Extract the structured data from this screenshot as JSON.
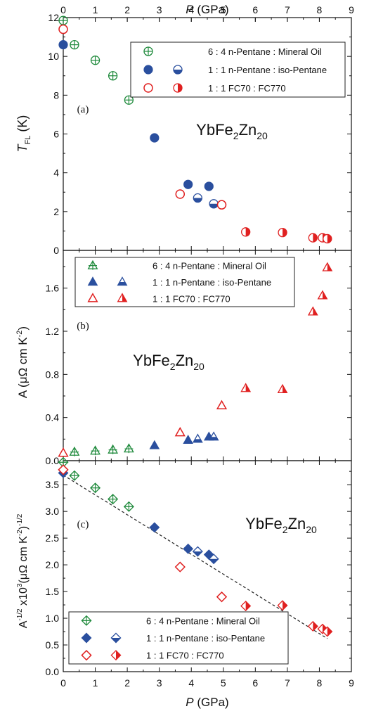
{
  "figure": {
    "top_axis_label": "P (GPa)",
    "bottom_axis_label": "P (GPa)",
    "x_ticks": [
      "0",
      "1",
      "2",
      "3",
      "4",
      "5",
      "6",
      "7",
      "8",
      "9"
    ]
  },
  "chart_data": [
    {
      "type": "scatter",
      "panel_label": "(a)",
      "annotation": "YbFe2Zn20",
      "ylabel": "T_FL (K)",
      "xlabel": "P (GPa)",
      "xlim": [
        0,
        9
      ],
      "ylim": [
        0,
        12
      ],
      "y_ticks": [
        "0",
        "2",
        "4",
        "6",
        "8",
        "10",
        "12"
      ],
      "legend_position": "top-right",
      "legend": [
        {
          "label": "6 : 4 n-Pentane : Mineral Oil",
          "markers": [
            "crossed-circle-green"
          ]
        },
        {
          "label": "1 : 1 n-Pentane : iso-Pentane",
          "markers": [
            "filled-circle-blue",
            "half-circle-blue"
          ]
        },
        {
          "label": "1 : 1 FC70 : FC770",
          "markers": [
            "open-circle-red",
            "half-circle-red"
          ]
        }
      ],
      "series": [
        {
          "name": "6 : 4 n-Pentane : Mineral Oil",
          "marker": "crossed-circle",
          "color": "#1f8a3c",
          "x": [
            0,
            0.35,
            1.0,
            1.55,
            2.05
          ],
          "y": [
            11.85,
            10.6,
            9.8,
            9.0,
            7.75
          ]
        },
        {
          "name": "1 : 1 n-Pentane : iso-Pentane",
          "marker": "filled-circle",
          "color": "#2a4f9e",
          "x": [
            0,
            2.85,
            3.9,
            4.55
          ],
          "y": [
            10.6,
            5.8,
            3.4,
            3.3
          ]
        },
        {
          "name": "1 : 1 n-Pentane : iso-Pentane",
          "marker": "half-circle",
          "color": "#2a4f9e",
          "x": [
            4.2,
            4.7
          ],
          "y": [
            2.7,
            2.4
          ]
        },
        {
          "name": "1 : 1 FC70 : FC770",
          "marker": "open-circle",
          "color": "#e02020",
          "x": [
            0,
            3.65,
            4.95
          ],
          "y": [
            11.4,
            2.9,
            2.35
          ]
        },
        {
          "name": "1 : 1 FC70 : FC770",
          "marker": "half-circle",
          "color": "#e02020",
          "x": [
            5.7,
            6.85,
            7.8,
            8.1,
            8.25
          ],
          "y": [
            0.95,
            0.92,
            0.65,
            0.65,
            0.6
          ]
        }
      ]
    },
    {
      "type": "scatter",
      "panel_label": "(b)",
      "annotation": "YbFe2Zn20",
      "ylabel": "A (μΩ cm K^-2)",
      "xlabel": "P (GPa)",
      "xlim": [
        0,
        9
      ],
      "ylim": [
        0,
        1.95
      ],
      "y_ticks": [
        "0.0",
        "0.4",
        "0.8",
        "1.2",
        "1.6"
      ],
      "legend_position": "top-left",
      "legend": [
        {
          "label": "6 : 4 n-Pentane : Mineral Oil",
          "markers": [
            "crossed-triangle-green"
          ]
        },
        {
          "label": "1 : 1 n-Pentane : iso-Pentane",
          "markers": [
            "filled-triangle-blue",
            "half-triangle-blue"
          ]
        },
        {
          "label": "1 : 1 FC70 : FC770",
          "markers": [
            "open-triangle-red",
            "half-triangle-red"
          ]
        }
      ],
      "series": [
        {
          "name": "6 : 4 n-Pentane : Mineral Oil",
          "marker": "crossed-triangle",
          "color": "#1f8a3c",
          "x": [
            0.35,
            1.0,
            1.55,
            2.05
          ],
          "y": [
            0.08,
            0.09,
            0.1,
            0.11
          ]
        },
        {
          "name": "1 : 1 n-Pentane : iso-Pentane",
          "marker": "filled-triangle",
          "color": "#2a4f9e",
          "x": [
            2.85,
            3.9,
            4.55
          ],
          "y": [
            0.14,
            0.19,
            0.22
          ]
        },
        {
          "name": "1 : 1 n-Pentane : iso-Pentane",
          "marker": "half-triangle",
          "color": "#2a4f9e",
          "x": [
            4.2,
            4.7
          ],
          "y": [
            0.2,
            0.22
          ]
        },
        {
          "name": "1 : 1 FC70 : FC770",
          "marker": "open-triangle",
          "color": "#e02020",
          "x": [
            0,
            3.65,
            4.95
          ],
          "y": [
            0.07,
            0.26,
            0.51
          ]
        },
        {
          "name": "1 : 1 FC70 : FC770",
          "marker": "half-triangle",
          "color": "#e02020",
          "x": [
            5.7,
            6.85,
            7.8,
            8.1,
            8.25
          ],
          "y": [
            0.67,
            0.66,
            1.38,
            1.53,
            1.79
          ]
        }
      ]
    },
    {
      "type": "scatter",
      "panel_label": "(c)",
      "annotation": "YbFe2Zn20",
      "ylabel": "A^-1/2 x10^3 (μΩ cm K^-2)^-1/2",
      "xlabel": "P (GPa)",
      "xlim": [
        0,
        9
      ],
      "ylim": [
        0,
        3.95
      ],
      "y_ticks": [
        "0.0",
        "0.5",
        "1.0",
        "1.5",
        "2.0",
        "2.5",
        "3.0",
        "3.5"
      ],
      "legend_position": "bottom-left",
      "legend": [
        {
          "label": "6 : 4 n-Pentane : Mineral Oil",
          "markers": [
            "crossed-diamond-green"
          ]
        },
        {
          "label": "1 : 1 n-Pentane : iso-Pentane",
          "markers": [
            "filled-diamond-blue",
            "half-diamond-blue"
          ]
        },
        {
          "label": "1 : 1 FC70 : FC770",
          "markers": [
            "open-diamond-red",
            "half-diamond-red"
          ]
        }
      ],
      "series": [
        {
          "name": "6 : 4 n-Pentane : Mineral Oil",
          "marker": "crossed-diamond",
          "color": "#1f8a3c",
          "x": [
            0,
            0.35,
            1.0,
            1.55,
            2.05
          ],
          "y": [
            3.92,
            3.67,
            3.44,
            3.23,
            3.09
          ]
        },
        {
          "name": "1 : 1 n-Pentane : iso-Pentane",
          "marker": "filled-diamond",
          "color": "#2a4f9e",
          "x": [
            0,
            2.85,
            3.9,
            4.55
          ],
          "y": [
            3.72,
            2.7,
            2.3,
            2.19
          ]
        },
        {
          "name": "1 : 1 n-Pentane : iso-Pentane",
          "marker": "half-diamond",
          "color": "#2a4f9e",
          "x": [
            4.2,
            4.7
          ],
          "y": [
            2.25,
            2.11
          ]
        },
        {
          "name": "1 : 1 FC70 : FC770",
          "marker": "open-diamond",
          "color": "#e02020",
          "x": [
            0,
            3.65,
            4.95
          ],
          "y": [
            3.78,
            1.96,
            1.4
          ]
        },
        {
          "name": "1 : 1 FC70 : FC770",
          "marker": "half-diamond",
          "color": "#e02020",
          "x": [
            5.7,
            6.85,
            7.8,
            8.1,
            8.25
          ],
          "y": [
            1.23,
            1.24,
            0.85,
            0.8,
            0.75
          ]
        }
      ],
      "fit_line": {
        "style": "dashed",
        "x": [
          0,
          8.25
        ],
        "y": [
          3.68,
          0.62
        ]
      }
    }
  ]
}
